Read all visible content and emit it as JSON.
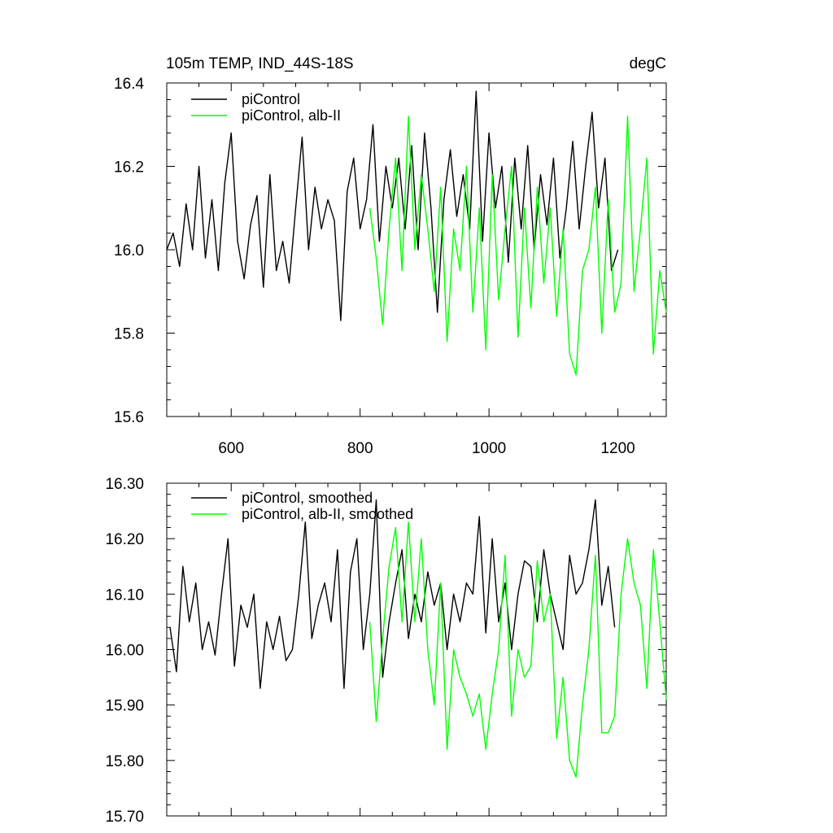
{
  "chart_data": [
    {
      "type": "line",
      "title_left": "105m TEMP, IND_44S-18S",
      "title_right": "degC",
      "xlabel": "",
      "ylabel": "",
      "xlim": [
        500,
        1275
      ],
      "ylim": [
        15.6,
        16.4
      ],
      "x_ticks": [
        600,
        800,
        1000,
        1200
      ],
      "x_tick_labels": [
        "600",
        "800",
        "1000",
        "1200"
      ],
      "y_ticks": [
        15.6,
        15.8,
        16.0,
        16.2,
        16.4
      ],
      "y_tick_labels": [
        "15.6",
        "15.8",
        "16.0",
        "16.2",
        "16.4"
      ],
      "grid": false,
      "legend_position": "top-left",
      "series": [
        {
          "name": "piControl",
          "color": "#000000",
          "x": [
            500,
            510,
            520,
            530,
            540,
            550,
            560,
            570,
            580,
            590,
            600,
            610,
            620,
            630,
            640,
            650,
            660,
            670,
            680,
            690,
            700,
            710,
            720,
            730,
            740,
            750,
            760,
            770,
            780,
            790,
            800,
            810,
            820,
            830,
            840,
            850,
            860,
            870,
            880,
            890,
            900,
            910,
            920,
            930,
            940,
            950,
            960,
            970,
            980,
            990,
            1000,
            1010,
            1020,
            1030,
            1040,
            1050,
            1060,
            1070,
            1080,
            1090,
            1100,
            1110,
            1120,
            1130,
            1140,
            1150,
            1160,
            1170,
            1180,
            1190,
            1200
          ],
          "values": [
            16.0,
            16.04,
            15.96,
            16.11,
            16.0,
            16.2,
            15.98,
            16.12,
            15.95,
            16.16,
            16.28,
            16.02,
            15.93,
            16.06,
            16.13,
            15.91,
            16.18,
            15.95,
            16.02,
            15.92,
            16.1,
            16.27,
            16.0,
            16.15,
            16.05,
            16.12,
            16.07,
            15.83,
            16.14,
            16.22,
            16.05,
            16.12,
            16.3,
            16.02,
            16.2,
            16.1,
            16.22,
            16.05,
            16.25,
            16.0,
            16.28,
            16.1,
            15.85,
            16.12,
            16.24,
            16.08,
            16.18,
            16.05,
            16.38,
            16.02,
            16.28,
            16.1,
            16.2,
            15.97,
            16.22,
            16.05,
            16.25,
            16.0,
            16.18,
            16.06,
            16.22,
            15.98,
            16.1,
            16.26,
            16.05,
            16.2,
            16.33,
            16.1,
            16.22,
            15.95,
            16.0
          ]
        },
        {
          "name": "piControl, alb-II",
          "color": "#00ff00",
          "x": [
            815,
            825,
            835,
            845,
            855,
            865,
            875,
            885,
            895,
            905,
            915,
            925,
            935,
            945,
            955,
            965,
            975,
            985,
            995,
            1005,
            1015,
            1025,
            1035,
            1045,
            1055,
            1065,
            1075,
            1085,
            1095,
            1105,
            1115,
            1125,
            1135,
            1145,
            1155,
            1165,
            1175,
            1185,
            1195,
            1205,
            1215,
            1225,
            1235,
            1245,
            1255,
            1265,
            1275
          ],
          "values": [
            16.1,
            15.98,
            15.82,
            16.05,
            16.22,
            15.95,
            16.32,
            16.0,
            16.18,
            16.05,
            15.9,
            16.15,
            15.78,
            16.05,
            15.95,
            16.2,
            15.85,
            16.1,
            15.76,
            16.18,
            15.88,
            16.05,
            16.2,
            15.79,
            16.1,
            15.86,
            16.15,
            15.92,
            16.1,
            15.84,
            16.05,
            15.75,
            15.7,
            15.95,
            16.0,
            16.15,
            15.8,
            16.12,
            15.85,
            15.92,
            16.32,
            15.9,
            16.05,
            16.22,
            15.75,
            15.95,
            15.85
          ]
        }
      ]
    },
    {
      "type": "line",
      "title_left": "",
      "title_right": "",
      "xlabel": "",
      "ylabel": "",
      "xlim": [
        500,
        1275
      ],
      "ylim": [
        15.7,
        16.3
      ],
      "x_ticks": [
        600,
        800,
        1000,
        1200
      ],
      "x_tick_labels": [
        "",
        "",
        "",
        ""
      ],
      "y_ticks": [
        15.7,
        15.8,
        15.9,
        16.0,
        16.1,
        16.2,
        16.3
      ],
      "y_tick_labels": [
        "15.70",
        "15.80",
        "15.90",
        "16.00",
        "16.10",
        "16.20",
        "16.30"
      ],
      "grid": false,
      "legend_position": "top-left",
      "series": [
        {
          "name": "piControl, smoothed",
          "color": "#000000",
          "x": [
            505,
            515,
            525,
            535,
            545,
            555,
            565,
            575,
            585,
            595,
            605,
            615,
            625,
            635,
            645,
            655,
            665,
            675,
            685,
            695,
            705,
            715,
            725,
            735,
            745,
            755,
            765,
            775,
            785,
            795,
            805,
            815,
            825,
            835,
            845,
            855,
            865,
            875,
            885,
            895,
            905,
            915,
            925,
            935,
            945,
            955,
            965,
            975,
            985,
            995,
            1005,
            1015,
            1025,
            1035,
            1045,
            1055,
            1065,
            1075,
            1085,
            1095,
            1105,
            1115,
            1125,
            1135,
            1145,
            1155,
            1165,
            1175,
            1185,
            1195
          ],
          "values": [
            16.04,
            15.96,
            16.15,
            16.05,
            16.12,
            16.0,
            16.05,
            15.99,
            16.1,
            16.2,
            15.97,
            16.08,
            16.04,
            16.1,
            15.93,
            16.05,
            16.0,
            16.06,
            15.98,
            16.0,
            16.1,
            16.23,
            16.02,
            16.08,
            16.12,
            16.05,
            16.18,
            15.93,
            16.14,
            16.2,
            16.0,
            16.1,
            16.27,
            15.95,
            16.05,
            16.12,
            16.18,
            16.02,
            16.1,
            16.05,
            16.14,
            16.08,
            16.12,
            16.0,
            16.1,
            16.05,
            16.12,
            16.1,
            16.24,
            16.03,
            16.2,
            16.05,
            16.12,
            16.0,
            16.1,
            16.16,
            16.15,
            16.05,
            16.18,
            16.1,
            16.05,
            16.0,
            16.17,
            16.1,
            16.12,
            16.18,
            16.27,
            16.08,
            16.15,
            16.04
          ]
        },
        {
          "name": "piControl, alb-II, smoothed",
          "color": "#00ff00",
          "x": [
            815,
            825,
            835,
            845,
            855,
            865,
            875,
            885,
            895,
            905,
            915,
            925,
            935,
            945,
            955,
            965,
            975,
            985,
            995,
            1005,
            1015,
            1025,
            1035,
            1045,
            1055,
            1065,
            1075,
            1085,
            1095,
            1105,
            1115,
            1125,
            1135,
            1145,
            1155,
            1165,
            1175,
            1185,
            1195,
            1205,
            1215,
            1225,
            1235,
            1245,
            1255,
            1265,
            1275
          ],
          "values": [
            16.05,
            15.87,
            16.02,
            16.15,
            16.22,
            16.05,
            16.23,
            16.05,
            16.2,
            16.0,
            15.9,
            16.12,
            15.82,
            16.0,
            15.95,
            15.92,
            15.88,
            15.92,
            15.82,
            15.92,
            16.0,
            16.17,
            15.88,
            16.0,
            15.95,
            15.97,
            16.16,
            16.05,
            16.1,
            15.84,
            15.95,
            15.8,
            15.77,
            15.9,
            16.0,
            16.17,
            15.85,
            15.85,
            15.88,
            16.1,
            16.2,
            16.12,
            16.08,
            15.93,
            16.18,
            16.05,
            15.91
          ]
        }
      ]
    }
  ]
}
